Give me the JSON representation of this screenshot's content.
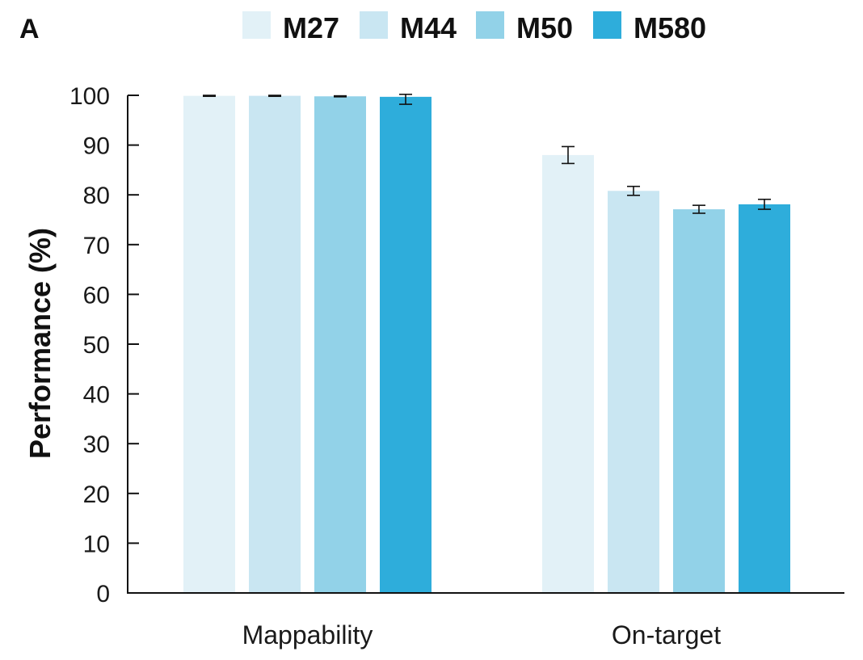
{
  "panel_label": "A",
  "chart_data": {
    "type": "bar",
    "title": "",
    "xlabel": "",
    "ylabel": "Performance (%)",
    "ylim": [
      0,
      100
    ],
    "yticks": [
      0,
      10,
      20,
      30,
      40,
      50,
      60,
      70,
      80,
      90,
      100
    ],
    "categories": [
      "Mappability",
      "On-target"
    ],
    "legend_position": "top",
    "series": [
      {
        "name": "M27",
        "color": "#e2f1f7",
        "values": [
          99.9,
          88.0
        ],
        "errors": [
          0.1,
          1.7
        ]
      },
      {
        "name": "M44",
        "color": "#c9e6f2",
        "values": [
          99.9,
          80.8
        ],
        "errors": [
          0.1,
          0.9
        ]
      },
      {
        "name": "M50",
        "color": "#92d2e8",
        "values": [
          99.8,
          77.1
        ],
        "errors": [
          0.1,
          0.8
        ]
      },
      {
        "name": "M580",
        "color": "#2eaddb",
        "values": [
          99.7,
          78.1
        ],
        "errors": [
          1.5,
          1.0
        ]
      }
    ]
  }
}
